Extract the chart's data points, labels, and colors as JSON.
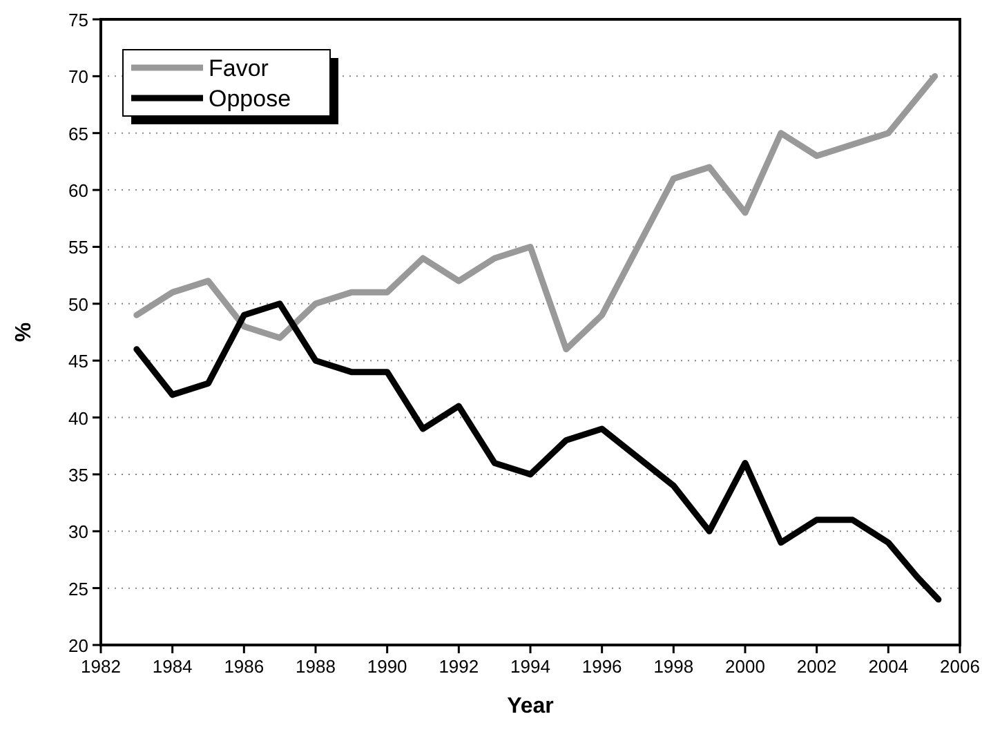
{
  "chart_data": {
    "type": "line",
    "xlabel": "Year",
    "ylabel": "%",
    "xlim": [
      1982,
      2006
    ],
    "xticks": [
      1982,
      1984,
      1986,
      1988,
      1990,
      1992,
      1994,
      1996,
      1998,
      2000,
      2002,
      2004,
      2006
    ],
    "ylim": [
      20,
      75
    ],
    "yticks": [
      20,
      25,
      30,
      35,
      40,
      45,
      50,
      55,
      60,
      65,
      70,
      75
    ],
    "grid": "y",
    "legend": "top left",
    "marker": "none",
    "line_style": "solid",
    "series": [
      {
        "name": "Favor",
        "color": "#999999",
        "x": [
          1983,
          1984,
          1985,
          1986,
          1987,
          1988,
          1989,
          1990,
          1991,
          1992,
          1993,
          1994,
          1995,
          1996,
          1997,
          1998,
          1999,
          2000,
          2001,
          2002,
          2003,
          2004,
          2005.3
        ],
        "values": [
          49,
          51,
          52,
          48,
          47,
          50,
          51,
          51,
          54,
          52,
          54,
          55,
          46,
          49,
          55,
          61,
          62,
          58,
          65,
          63,
          64,
          65,
          70
        ]
      },
      {
        "name": "Oppose",
        "color": "#000000",
        "x": [
          1983,
          1984,
          1985,
          1986,
          1987,
          1988,
          1989,
          1990,
          1991,
          1992,
          1993,
          1994,
          1995,
          1996,
          1997,
          1998,
          1999,
          2000,
          2001,
          2002,
          2003,
          2004,
          2004.8,
          2005.4
        ],
        "values": [
          46,
          42,
          43,
          49,
          50,
          45,
          44,
          44,
          39,
          41,
          36,
          35,
          38,
          39,
          36.5,
          34,
          30,
          36,
          29,
          31,
          31,
          29,
          26,
          24
        ]
      }
    ]
  }
}
